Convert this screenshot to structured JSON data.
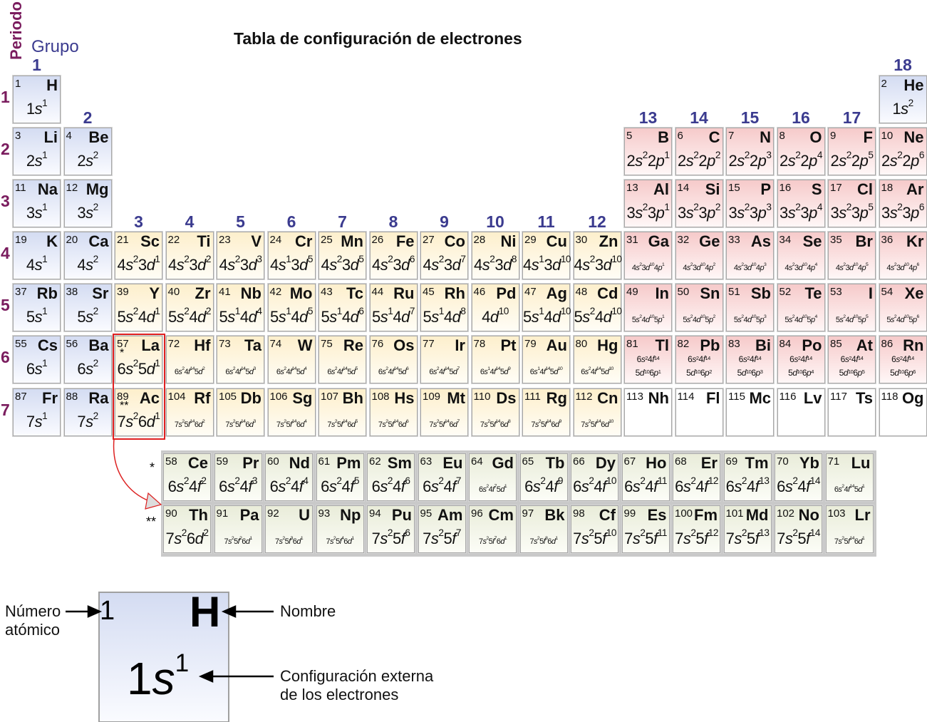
{
  "title": "Tabla de configuración de electrones",
  "axis": {
    "period_label": "Periodo",
    "group_label": "Grupo"
  },
  "groups": [
    "1",
    "2",
    "3",
    "4",
    "5",
    "6",
    "7",
    "8",
    "9",
    "10",
    "11",
    "12",
    "13",
    "14",
    "15",
    "16",
    "17",
    "18"
  ],
  "periods": [
    "1",
    "2",
    "3",
    "4",
    "5",
    "6",
    "7"
  ],
  "markers": {
    "lanthanide": "*",
    "actinide": "**"
  },
  "colors": {
    "s_block": "#d4dcf2",
    "d_block": "#fdefcc",
    "p_block": "#f6caca",
    "f_block": "#e9ecd9",
    "highlight": "#e02020",
    "group_label": "#3b3b8f",
    "period_label": "#7a1c5e"
  },
  "elements": [
    [
      1,
      "H",
      "1s1",
      1,
      1,
      "s"
    ],
    [
      2,
      "He",
      "1s2",
      1,
      18,
      "s"
    ],
    [
      3,
      "Li",
      "2s1",
      2,
      1,
      "s"
    ],
    [
      4,
      "Be",
      "2s2",
      2,
      2,
      "s"
    ],
    [
      5,
      "B",
      "2s2 2p1",
      2,
      13,
      "p"
    ],
    [
      6,
      "C",
      "2s2 2p2",
      2,
      14,
      "p"
    ],
    [
      7,
      "N",
      "2s2 2p3",
      2,
      15,
      "p"
    ],
    [
      8,
      "O",
      "2s2 2p4",
      2,
      16,
      "p"
    ],
    [
      9,
      "F",
      "2s2 2p5",
      2,
      17,
      "p"
    ],
    [
      10,
      "Ne",
      "2s2 2p6",
      2,
      18,
      "p"
    ],
    [
      11,
      "Na",
      "3s1",
      3,
      1,
      "s"
    ],
    [
      12,
      "Mg",
      "3s2",
      3,
      2,
      "s"
    ],
    [
      13,
      "Al",
      "3s2 3p1",
      3,
      13,
      "p"
    ],
    [
      14,
      "Si",
      "3s2 3p2",
      3,
      14,
      "p"
    ],
    [
      15,
      "P",
      "3s2 3p3",
      3,
      15,
      "p"
    ],
    [
      16,
      "S",
      "3s2 3p4",
      3,
      16,
      "p"
    ],
    [
      17,
      "Cl",
      "3s2 3p5",
      3,
      17,
      "p"
    ],
    [
      18,
      "Ar",
      "3s2 3p6",
      3,
      18,
      "p"
    ],
    [
      19,
      "K",
      "4s1",
      4,
      1,
      "s"
    ],
    [
      20,
      "Ca",
      "4s2",
      4,
      2,
      "s"
    ],
    [
      21,
      "Sc",
      "4s2 3d1",
      4,
      3,
      "d"
    ],
    [
      22,
      "Ti",
      "4s2 3d2",
      4,
      4,
      "d"
    ],
    [
      23,
      "V",
      "4s2 3d3",
      4,
      5,
      "d"
    ],
    [
      24,
      "Cr",
      "4s1 3d5",
      4,
      6,
      "d"
    ],
    [
      25,
      "Mn",
      "4s2 3d5",
      4,
      7,
      "d"
    ],
    [
      26,
      "Fe",
      "4s2 3d6",
      4,
      8,
      "d"
    ],
    [
      27,
      "Co",
      "4s2 3d7",
      4,
      9,
      "d"
    ],
    [
      28,
      "Ni",
      "4s2 3d8",
      4,
      10,
      "d"
    ],
    [
      29,
      "Cu",
      "4s1 3d10",
      4,
      11,
      "d"
    ],
    [
      30,
      "Zn",
      "4s2 3d10",
      4,
      12,
      "d"
    ],
    [
      31,
      "Ga",
      "4s2 3d10 4p1",
      4,
      13,
      "p"
    ],
    [
      32,
      "Ge",
      "4s2 3d10 4p2",
      4,
      14,
      "p"
    ],
    [
      33,
      "As",
      "4s2 3d10 4p3",
      4,
      15,
      "p"
    ],
    [
      34,
      "Se",
      "4s2 3d10 4p4",
      4,
      16,
      "p"
    ],
    [
      35,
      "Br",
      "4s2 3d10 4p5",
      4,
      17,
      "p"
    ],
    [
      36,
      "Kr",
      "4s2 3d10 4p6",
      4,
      18,
      "p"
    ],
    [
      37,
      "Rb",
      "5s1",
      5,
      1,
      "s"
    ],
    [
      38,
      "Sr",
      "5s2",
      5,
      2,
      "s"
    ],
    [
      39,
      "Y",
      "5s2 4d1",
      5,
      3,
      "d"
    ],
    [
      40,
      "Zr",
      "5s2 4d2",
      5,
      4,
      "d"
    ],
    [
      41,
      "Nb",
      "5s1 4d4",
      5,
      5,
      "d"
    ],
    [
      42,
      "Mo",
      "5s1 4d5",
      5,
      6,
      "d"
    ],
    [
      43,
      "Tc",
      "5s1 4d6",
      5,
      7,
      "d"
    ],
    [
      44,
      "Ru",
      "5s1 4d7",
      5,
      8,
      "d"
    ],
    [
      45,
      "Rh",
      "5s1 4d8",
      5,
      9,
      "d"
    ],
    [
      46,
      "Pd",
      "4d10",
      5,
      10,
      "d"
    ],
    [
      47,
      "Ag",
      "5s1 4d10",
      5,
      11,
      "d"
    ],
    [
      48,
      "Cd",
      "5s2 4d10",
      5,
      12,
      "d"
    ],
    [
      49,
      "In",
      "5s2 4d10 5p1",
      5,
      13,
      "p"
    ],
    [
      50,
      "Sn",
      "5s2 4d10 5p2",
      5,
      14,
      "p"
    ],
    [
      51,
      "Sb",
      "5s2 4d10 5p3",
      5,
      15,
      "p"
    ],
    [
      52,
      "Te",
      "5s2 4d10 5p4",
      5,
      16,
      "p"
    ],
    [
      53,
      "I",
      "5s2 4d10 5p5",
      5,
      17,
      "p"
    ],
    [
      54,
      "Xe",
      "5s2 4d10 5p6",
      5,
      18,
      "p"
    ],
    [
      55,
      "Cs",
      "6s1",
      6,
      1,
      "s"
    ],
    [
      56,
      "Ba",
      "6s2",
      6,
      2,
      "s"
    ],
    [
      57,
      "La",
      "6s2 5d1",
      6,
      3,
      "d",
      "*"
    ],
    [
      72,
      "Hf",
      "6s2 4f14 5d2",
      6,
      4,
      "d"
    ],
    [
      73,
      "Ta",
      "6s2 4f14 5d3",
      6,
      5,
      "d"
    ],
    [
      74,
      "W",
      "6s2 4f14 5d4",
      6,
      6,
      "d"
    ],
    [
      75,
      "Re",
      "6s2 4f14 5d5",
      6,
      7,
      "d"
    ],
    [
      76,
      "Os",
      "6s2 4f14 5d6",
      6,
      8,
      "d"
    ],
    [
      77,
      "Ir",
      "6s2 4f14 5d7",
      6,
      9,
      "d"
    ],
    [
      78,
      "Pt",
      "6s1 4f14 5d9",
      6,
      10,
      "d"
    ],
    [
      79,
      "Au",
      "6s1 4f14 5d10",
      6,
      11,
      "d"
    ],
    [
      80,
      "Hg",
      "6s2 4f14 5d10",
      6,
      12,
      "d"
    ],
    [
      81,
      "Tl",
      "6s2 4f14|5d10 6p1",
      6,
      13,
      "p"
    ],
    [
      82,
      "Pb",
      "6s2 4f14|5d10 6p2",
      6,
      14,
      "p"
    ],
    [
      83,
      "Bi",
      "6s2 4f14|5d10 6p3",
      6,
      15,
      "p"
    ],
    [
      84,
      "Po",
      "6s2 4f14|5d10 6p4",
      6,
      16,
      "p"
    ],
    [
      85,
      "At",
      "6s2 4f14|5d10 6p5",
      6,
      17,
      "p"
    ],
    [
      86,
      "Rn",
      "6s2 4f14|5d10 6p6",
      6,
      18,
      "p"
    ],
    [
      87,
      "Fr",
      "7s1",
      7,
      1,
      "s"
    ],
    [
      88,
      "Ra",
      "7s2",
      7,
      2,
      "s"
    ],
    [
      89,
      "Ac",
      "7s2 6d1",
      7,
      3,
      "d",
      "**"
    ],
    [
      104,
      "Rf",
      "7s2 5f14 6d2",
      7,
      4,
      "d"
    ],
    [
      105,
      "Db",
      "7s2 5f14 6d3",
      7,
      5,
      "d"
    ],
    [
      106,
      "Sg",
      "7s2 5f14 6d4",
      7,
      6,
      "d"
    ],
    [
      107,
      "Bh",
      "7s2 5f14 6d5",
      7,
      7,
      "d"
    ],
    [
      108,
      "Hs",
      "7s2 5f14 6d6",
      7,
      8,
      "d"
    ],
    [
      109,
      "Mt",
      "7s2 5f14 6d7",
      7,
      9,
      "d"
    ],
    [
      110,
      "Ds",
      "7s2 5f14 6d8",
      7,
      10,
      "d"
    ],
    [
      111,
      "Rg",
      "7s2 5f14 6d9",
      7,
      11,
      "d"
    ],
    [
      112,
      "Cn",
      "7s2 5f14 6d10",
      7,
      12,
      "d"
    ],
    [
      113,
      "Nh",
      "",
      7,
      13,
      "x"
    ],
    [
      114,
      "Fl",
      "",
      7,
      14,
      "x"
    ],
    [
      115,
      "Mc",
      "",
      7,
      15,
      "x"
    ],
    [
      116,
      "Lv",
      "",
      7,
      16,
      "x"
    ],
    [
      117,
      "Ts",
      "",
      7,
      17,
      "x"
    ],
    [
      118,
      "Og",
      "",
      7,
      18,
      "x"
    ]
  ],
  "lanthanides": [
    [
      58,
      "Ce",
      "6s2 4f2"
    ],
    [
      59,
      "Pr",
      "6s2 4f3"
    ],
    [
      60,
      "Nd",
      "6s2 4f4"
    ],
    [
      61,
      "Pm",
      "6s2 4f5"
    ],
    [
      62,
      "Sm",
      "6s2 4f6"
    ],
    [
      63,
      "Eu",
      "6s2 4f7"
    ],
    [
      64,
      "Gd",
      "6s2 4f7 5d1"
    ],
    [
      65,
      "Tb",
      "6s2 4f9"
    ],
    [
      66,
      "Dy",
      "6s2 4f10"
    ],
    [
      67,
      "Ho",
      "6s2 4f11"
    ],
    [
      68,
      "Er",
      "6s2 4f12"
    ],
    [
      69,
      "Tm",
      "6s2 4f13"
    ],
    [
      70,
      "Yb",
      "6s2 4f14"
    ],
    [
      71,
      "Lu",
      "6s2 4f14 5d1"
    ]
  ],
  "actinides": [
    [
      90,
      "Th",
      "7s2 6d2"
    ],
    [
      91,
      "Pa",
      "7s2 5f2 6d1"
    ],
    [
      92,
      "U",
      "7s2 5f3 6d1"
    ],
    [
      93,
      "Np",
      "7s2 5f4 6d1"
    ],
    [
      94,
      "Pu",
      "7s2 5f6"
    ],
    [
      95,
      "Am",
      "7s2 5f7"
    ],
    [
      96,
      "Cm",
      "7s2 5f7 6d1"
    ],
    [
      97,
      "Bk",
      "7s2 5f8 6d1"
    ],
    [
      98,
      "Cf",
      "7s2 5f10"
    ],
    [
      99,
      "Es",
      "7s2 5f11"
    ],
    [
      100,
      "Fm",
      "7s2 5f12"
    ],
    [
      101,
      "Md",
      "7s2 5f13"
    ],
    [
      102,
      "No",
      "7s2 5f14"
    ],
    [
      103,
      "Lr",
      "7s2 5f14 6d1"
    ]
  ],
  "legend": {
    "number": "1",
    "symbol": "H",
    "config": "1s1",
    "number_label": "Número atómico",
    "symbol_label": "Nombre",
    "config_label_1": "Configuración externa",
    "config_label_2": "de los electrones"
  }
}
